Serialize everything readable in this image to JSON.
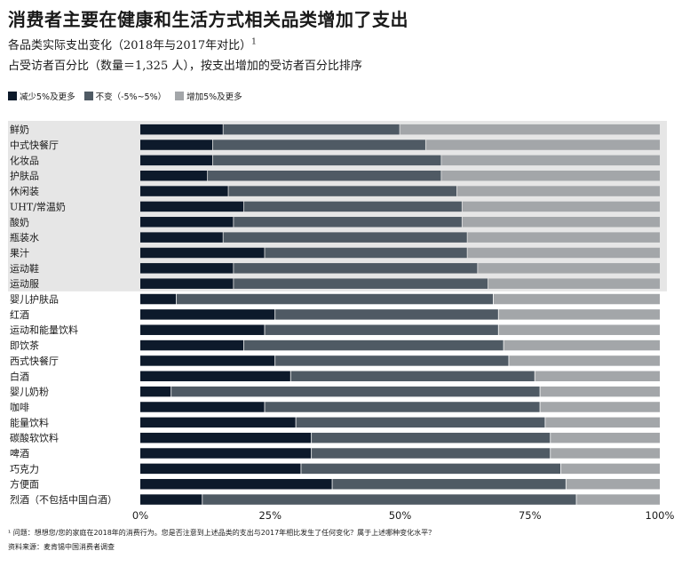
{
  "title": "消费者主要在健康和生活方式相关品类增加了支出",
  "subtitle": "各品类实际支出变化（2018年与2017年对比）",
  "subtitle_sup": "1",
  "note": "占受访者百分比（数量＝1,325 人），按支出增加的受访者百分比排序",
  "footnote": "¹ 问题：想想您/您的家庭在2018年的消费行为。您是否注意到上述品类的支出与2017年相比发生了任何变化？属于上述哪种变化水平？",
  "source": "资料来源：麦肯锡中国消费者调查",
  "colors": {
    "decrease": "#0d1a2b",
    "nochange": "#4f5a64",
    "increase": "#a3a6a9",
    "highlight": "#e6e6e6"
  },
  "chart_data": {
    "type": "bar",
    "orientation": "horizontal",
    "stacked": true,
    "xlim": [
      0,
      100
    ],
    "x_ticks": [
      "0%",
      "25%",
      "50%",
      "75%",
      "100%"
    ],
    "highlighted_categories_count": 11,
    "categories": [
      "鲜奶",
      "中式快餐厅",
      "化妆品",
      "护肤品",
      "休闲装",
      "UHT/常温奶",
      "酸奶",
      "瓶装水",
      "果汁",
      "运动鞋",
      "运动服",
      "婴儿护肤品",
      "红酒",
      "运动和能量饮料",
      "即饮茶",
      "西式快餐厅",
      "白酒",
      "婴儿奶粉",
      "咖啡",
      "能量饮料",
      "碳酸软饮料",
      "啤酒",
      "巧克力",
      "方便面",
      "烈酒（不包括中国白酒）"
    ],
    "series": [
      {
        "name": "减少5%及更多",
        "values": [
          16,
          14,
          14,
          13,
          17,
          20,
          18,
          16,
          24,
          18,
          18,
          7,
          26,
          24,
          20,
          26,
          29,
          6,
          24,
          30,
          33,
          33,
          31,
          37,
          12
        ]
      },
      {
        "name": "不变（-5%~5%）",
        "values": [
          34,
          41,
          44,
          45,
          44,
          42,
          44,
          47,
          39,
          47,
          49,
          61,
          43,
          45,
          50,
          45,
          47,
          71,
          53,
          48,
          46,
          46,
          50,
          45,
          72
        ]
      },
      {
        "name": "增加5%及更多",
        "values": [
          50,
          45,
          42,
          42,
          39,
          38,
          38,
          37,
          37,
          35,
          33,
          32,
          31,
          31,
          30,
          29,
          24,
          23,
          23,
          22,
          21,
          21,
          19,
          18,
          16
        ]
      }
    ]
  }
}
